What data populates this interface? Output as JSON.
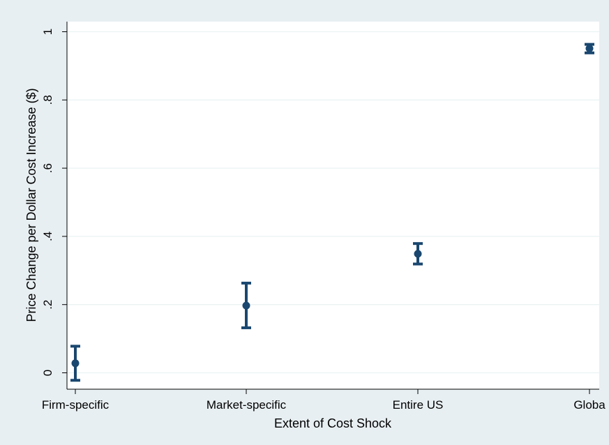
{
  "chart_data": {
    "type": "scatter",
    "subtype": "point-with-error-bars",
    "title": "",
    "xlabel": "Extent of Cost Shock",
    "ylabel": "Price Change per Dollar Cost Increase ($)",
    "categories": [
      "Firm-specific",
      "Market-specific",
      "Entire US",
      "Globa"
    ],
    "points": [
      {
        "category": "Firm-specific",
        "y": 0.028,
        "lower": -0.022,
        "upper": 0.078
      },
      {
        "category": "Market-specific",
        "y": 0.197,
        "lower": 0.132,
        "upper": 0.263
      },
      {
        "category": "Entire US",
        "y": 0.349,
        "lower": 0.319,
        "upper": 0.379
      },
      {
        "category": "Globa",
        "y": 0.951,
        "lower": 0.938,
        "upper": 0.963
      }
    ],
    "yticks": [
      {
        "value": 0,
        "label": "0"
      },
      {
        "value": 0.2,
        "label": ".2"
      },
      {
        "value": 0.4,
        "label": ".4"
      },
      {
        "value": 0.6,
        "label": ".6"
      },
      {
        "value": 0.8,
        "label": ".8"
      },
      {
        "value": 1,
        "label": "1"
      }
    ],
    "ylim": [
      -0.05,
      1.03
    ],
    "grid": true,
    "colors": {
      "marker": "#1a476f",
      "grid": "#eaf2f3",
      "plot_background": "#ffffff",
      "outer_background": "#e8eff2",
      "axis": "#000000"
    }
  }
}
